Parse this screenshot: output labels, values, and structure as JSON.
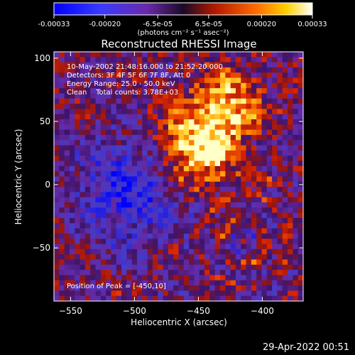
{
  "colorbar": {
    "ticks": [
      "-0.00033",
      "-0.00020",
      "-6.5e-05",
      "6.5e-05",
      "0.00020",
      "0.00033"
    ],
    "units_text": "(photons cm⁻² s⁻¹ asec⁻²)",
    "range": [
      -0.00033,
      0.00033
    ]
  },
  "chart_data": {
    "type": "heatmap",
    "title": "Reconstructed RHESSI Image",
    "xlabel": "Heliocentric X (arcsec)",
    "ylabel": "Heliocentric Y (arcsec)",
    "xlim": [
      -563,
      -368
    ],
    "ylim": [
      -92,
      105
    ],
    "x_ticks": [
      -550,
      -500,
      -450,
      -400
    ],
    "y_ticks": [
      -50,
      0,
      50,
      100
    ],
    "peak": {
      "x": -450,
      "y": 10
    },
    "annotations": {
      "time_range": "10-May-2002 21:48:16.000 to 21:52:20.000",
      "detectors": "Detectors: 3F 4F 5F 6F 7F 8F, Att 0",
      "energy_range": "Energy Range: 25.0 - 50.0 keV",
      "clean_line": "Clean    Total counts: 3.78E+03",
      "peak_position": "Position of Peak = [-450,10]"
    },
    "colors": {
      "negative": "#0000ff",
      "mid_negative": "#5a1e9a",
      "zero": "#2a1456",
      "positive_low": "#c81a00",
      "positive_mid": "#ff8800",
      "positive_high": "#ffff80"
    }
  },
  "footer": {
    "timestamp": "29-Apr-2022 00:51"
  }
}
